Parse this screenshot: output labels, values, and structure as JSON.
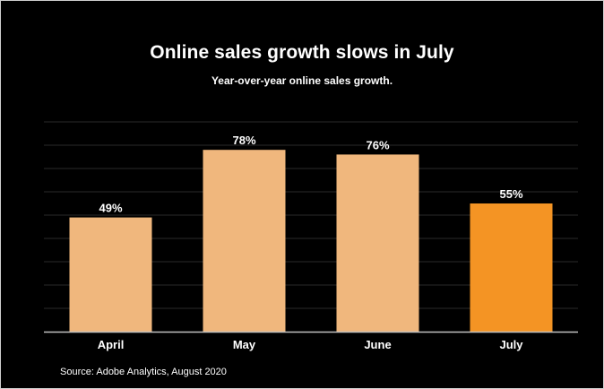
{
  "chart_data": {
    "type": "bar",
    "title": "Online sales growth slows in July",
    "subtitle": "Year-over-year online sales growth.",
    "categories": [
      "April",
      "May",
      "June",
      "July"
    ],
    "values": [
      49,
      78,
      76,
      55
    ],
    "value_labels": [
      "49%",
      "78%",
      "76%",
      "55%"
    ],
    "xlabel": "",
    "ylabel": "",
    "ylim": [
      0,
      90
    ],
    "grid": true,
    "colors": [
      "#F0B77D",
      "#F0B77D",
      "#F0B77D",
      "#F49424"
    ]
  },
  "source": "Source: Adobe Analytics, August 2020",
  "colors": {
    "background": "#000000",
    "gridline": "#2a2a2a",
    "baseline": "#bfbfbf",
    "text": "#ffffff"
  }
}
